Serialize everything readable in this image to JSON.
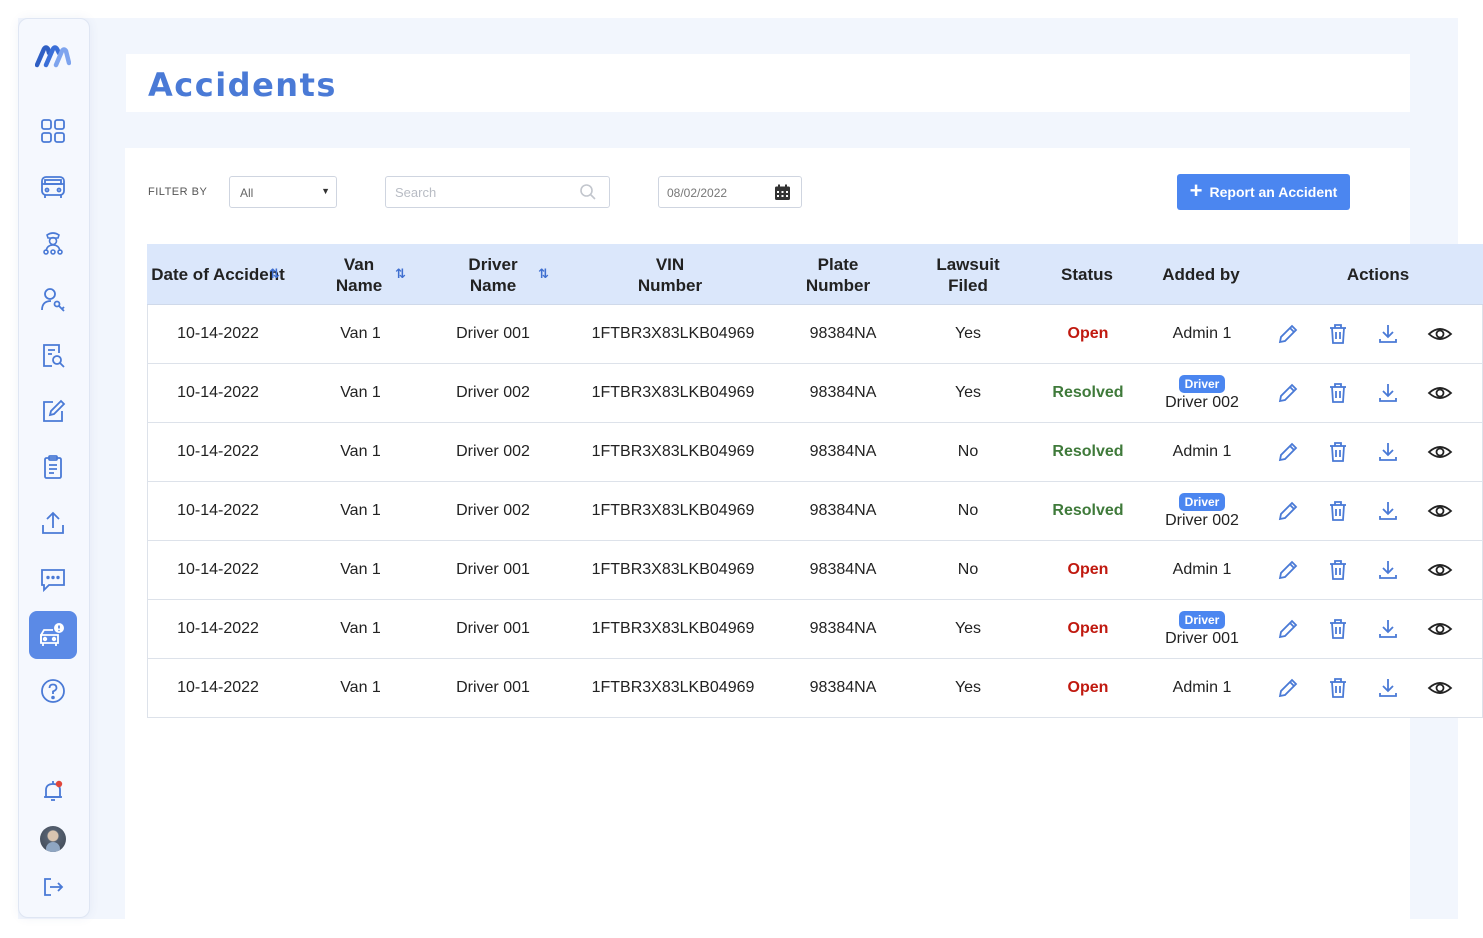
{
  "page": {
    "title": "Accidents"
  },
  "filters": {
    "filter_by_label": "FILTER BY",
    "filter_value": "All",
    "search_placeholder": "Search",
    "date_value": "08/02/2022",
    "report_button_label": "Report an Accident"
  },
  "sidebar": {
    "items": [
      {
        "icon": "dashboard-grid-icon"
      },
      {
        "icon": "van-icon"
      },
      {
        "icon": "drivers-icon"
      },
      {
        "icon": "user-key-icon"
      },
      {
        "icon": "document-search-icon"
      },
      {
        "icon": "edit-note-icon"
      },
      {
        "icon": "clipboard-icon"
      },
      {
        "icon": "upload-icon"
      },
      {
        "icon": "chat-icon"
      },
      {
        "icon": "accident-van-icon",
        "active": true
      },
      {
        "icon": "help-icon"
      }
    ],
    "accent": "#5b8ae6"
  },
  "table": {
    "headers": {
      "date": "Date of Accident",
      "van": "Van Name",
      "driver": "Driver Name",
      "vin": "VIN Number",
      "plate": "Plate Number",
      "lawsuit": "Lawsuit Filed",
      "status": "Status",
      "added_by": "Added by",
      "actions": "Actions"
    },
    "rows": [
      {
        "date": "10-14-2022",
        "van": "Van 1",
        "driver": "Driver 001",
        "vin": "1FTBR3X83LKB04969",
        "plate": "98384NA",
        "lawsuit": "Yes",
        "status": "Open",
        "added_badge": "",
        "added_by": "Admin 1"
      },
      {
        "date": "10-14-2022",
        "van": "Van 1",
        "driver": "Driver 002",
        "vin": "1FTBR3X83LKB04969",
        "plate": "98384NA",
        "lawsuit": "Yes",
        "status": "Resolved",
        "added_badge": "Driver",
        "added_by": "Driver 002"
      },
      {
        "date": "10-14-2022",
        "van": "Van 1",
        "driver": "Driver 002",
        "vin": "1FTBR3X83LKB04969",
        "plate": "98384NA",
        "lawsuit": "No",
        "status": "Resolved",
        "added_badge": "",
        "added_by": "Admin 1"
      },
      {
        "date": "10-14-2022",
        "van": "Van 1",
        "driver": "Driver 002",
        "vin": "1FTBR3X83LKB04969",
        "plate": "98384NA",
        "lawsuit": "No",
        "status": "Resolved",
        "added_badge": "Driver",
        "added_by": "Driver 002"
      },
      {
        "date": "10-14-2022",
        "van": "Van 1",
        "driver": "Driver 001",
        "vin": "1FTBR3X83LKB04969",
        "plate": "98384NA",
        "lawsuit": "No",
        "status": "Open",
        "added_badge": "",
        "added_by": "Admin 1"
      },
      {
        "date": "10-14-2022",
        "van": "Van 1",
        "driver": "Driver 001",
        "vin": "1FTBR3X83LKB04969",
        "plate": "98384NA",
        "lawsuit": "Yes",
        "status": "Open",
        "added_badge": "Driver",
        "added_by": "Driver 001"
      },
      {
        "date": "10-14-2022",
        "van": "Van 1",
        "driver": "Driver 001",
        "vin": "1FTBR3X83LKB04969",
        "plate": "98384NA",
        "lawsuit": "Yes",
        "status": "Open",
        "added_badge": "",
        "added_by": "Admin 1"
      }
    ],
    "status_colors": {
      "Open": "#c0190f",
      "Resolved": "#3f7a3a"
    }
  }
}
